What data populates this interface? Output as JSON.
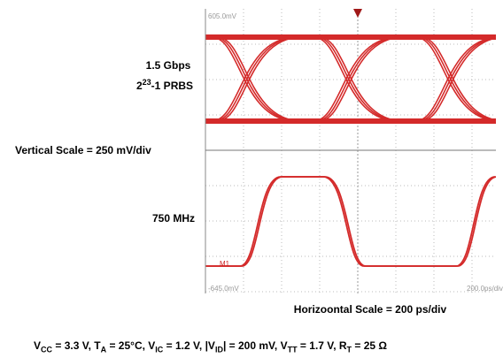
{
  "labels": {
    "rate": "1.5 Gbps",
    "prbs": {
      "base": "2",
      "sup": "23",
      "rest": "-1 PRBS"
    },
    "vertical_scale": "Vertical Scale = 250 mV/div",
    "clock": "750 MHz",
    "horizontal_scale": "Horizoontal Scale = 200 ps/div"
  },
  "scope": {
    "top_label": "605.0mV",
    "bottom_label": "-645.0mV",
    "time_label": "200.0ps/div",
    "marker": "M1"
  },
  "conditions": [
    {
      "base": "V",
      "sub": "CC",
      "rest": " = 3.3 V, "
    },
    {
      "base": "T",
      "sub": "A",
      "rest": " = 25°C, "
    },
    {
      "base": "V",
      "sub": "IC",
      "rest": " = 1.2 V, "
    },
    {
      "base": "|V",
      "sub": "ID",
      "rest": "| = 200 mV, "
    },
    {
      "base": "V",
      "sub": "TT",
      "rest": " = 1.7 V, "
    },
    {
      "base": "R",
      "sub": "T",
      "rest": " = 25 Ω"
    }
  ]
}
